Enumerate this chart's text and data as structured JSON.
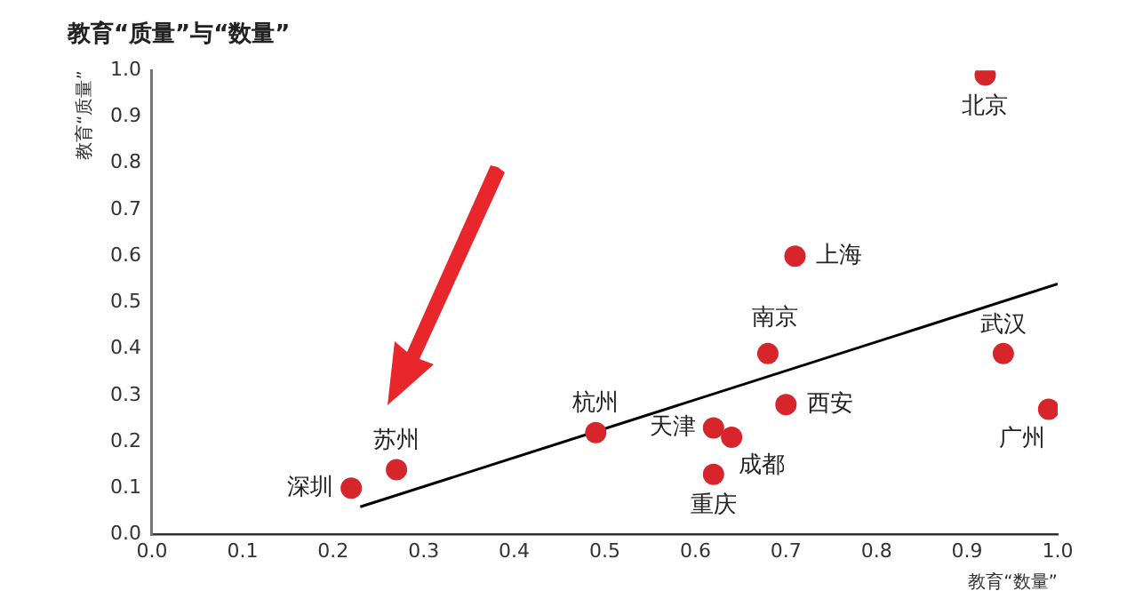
{
  "chart_data": {
    "type": "scatter",
    "title": "教育“质量”与“数量”",
    "xlabel": "教育“数量”",
    "ylabel": "教育“质量”",
    "xlim": [
      0,
      1
    ],
    "ylim": [
      0,
      1
    ],
    "xticks": [
      {
        "value": 0,
        "label": "0.0"
      },
      {
        "value": 0.1,
        "label": "0.1"
      },
      {
        "value": 0.2,
        "label": "0.2"
      },
      {
        "value": 0.3,
        "label": "0.3"
      },
      {
        "value": 0.4,
        "label": "0.4"
      },
      {
        "value": 0.5,
        "label": "0.5"
      },
      {
        "value": 0.6,
        "label": "0.6"
      },
      {
        "value": 0.7,
        "label": "0.7"
      },
      {
        "value": 0.8,
        "label": "0.8"
      },
      {
        "value": 0.9,
        "label": "0.9"
      },
      {
        "value": 1,
        "label": "1.0"
      }
    ],
    "yticks": [
      {
        "value": 0,
        "label": "0.0"
      },
      {
        "value": 0.1,
        "label": "0.1"
      },
      {
        "value": 0.2,
        "label": "0.2"
      },
      {
        "value": 0.3,
        "label": "0.3"
      },
      {
        "value": 0.4,
        "label": "0.4"
      },
      {
        "value": 0.5,
        "label": "0.5"
      },
      {
        "value": 0.6,
        "label": "0.6"
      },
      {
        "value": 0.7,
        "label": "0.7"
      },
      {
        "value": 0.8,
        "label": "0.8"
      },
      {
        "value": 0.9,
        "label": "0.9"
      },
      {
        "value": 1,
        "label": "1.0"
      }
    ],
    "grid": false,
    "legend": false,
    "marker": "circle",
    "series": [
      {
        "name": "深圳",
        "color": "#d7262b",
        "x": [
          0.22
        ],
        "values": [
          0.1
        ]
      },
      {
        "name": "苏州",
        "color": "#d7262b",
        "x": [
          0.27
        ],
        "values": [
          0.14
        ]
      },
      {
        "name": "杭州",
        "color": "#d7262b",
        "x": [
          0.49
        ],
        "values": [
          0.22
        ]
      },
      {
        "name": "天津",
        "color": "#d7262b",
        "x": [
          0.62
        ],
        "values": [
          0.23
        ]
      },
      {
        "name": "成都",
        "color": "#d7262b",
        "x": [
          0.64
        ],
        "values": [
          0.21
        ]
      },
      {
        "name": "重庆",
        "color": "#d7262b",
        "x": [
          0.62
        ],
        "values": [
          0.13
        ]
      },
      {
        "name": "西安",
        "color": "#d7262b",
        "x": [
          0.7
        ],
        "values": [
          0.28
        ]
      },
      {
        "name": "南京",
        "color": "#d7262b",
        "x": [
          0.68
        ],
        "values": [
          0.39
        ]
      },
      {
        "name": "上海",
        "color": "#d7262b",
        "x": [
          0.71
        ],
        "values": [
          0.6
        ]
      },
      {
        "name": "北京",
        "color": "#d7262b",
        "x": [
          0.92
        ],
        "values": [
          0.99
        ]
      },
      {
        "name": "武汉",
        "color": "#d7262b",
        "x": [
          0.94
        ],
        "values": [
          0.39
        ]
      },
      {
        "name": "广州",
        "color": "#d7262b",
        "x": [
          0.99
        ],
        "values": [
          0.27
        ]
      },
      {
        "type": "line",
        "color": "#000000",
        "x": [
          0.23,
          1.0
        ],
        "values": [
          0.06,
          0.54
        ],
        "marker": "none"
      }
    ]
  }
}
